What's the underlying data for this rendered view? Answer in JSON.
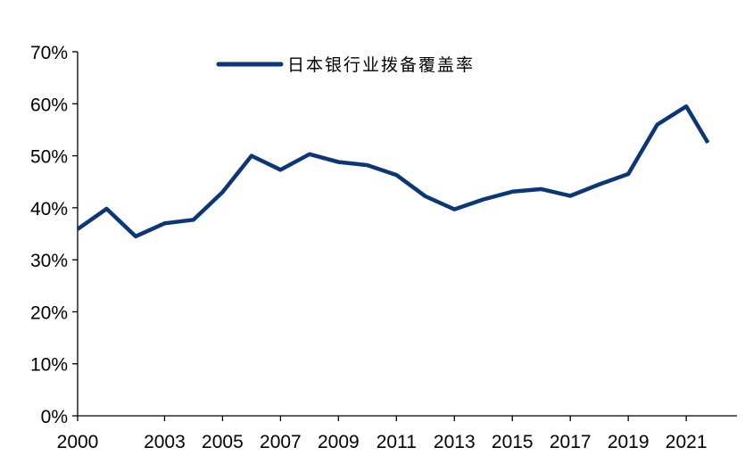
{
  "chart_data": {
    "type": "line",
    "title": "",
    "xlabel": "",
    "ylabel": "",
    "x_ticks": [
      "2000",
      "2003",
      "2005",
      "2007",
      "2009",
      "2011",
      "2013",
      "2015",
      "2017",
      "2019",
      "2021"
    ],
    "y_ticks": [
      "0%",
      "10%",
      "20%",
      "30%",
      "40%",
      "50%",
      "60%",
      "70%"
    ],
    "xlim": [
      2000,
      2022.75
    ],
    "ylim": [
      0,
      70
    ],
    "grid": false,
    "legend_position": "top",
    "color": "#0b3677",
    "series": [
      {
        "name": "日本银行业拨备覆盖率",
        "points": [
          {
            "x": 2000.0,
            "y": 35.9
          },
          {
            "x": 2001.0,
            "y": 39.8
          },
          {
            "x": 2002.0,
            "y": 34.5
          },
          {
            "x": 2003.0,
            "y": 37.0
          },
          {
            "x": 2004.0,
            "y": 37.7
          },
          {
            "x": 2005.0,
            "y": 43.0
          },
          {
            "x": 2006.0,
            "y": 50.0
          },
          {
            "x": 2007.0,
            "y": 47.3
          },
          {
            "x": 2008.0,
            "y": 50.3
          },
          {
            "x": 2009.0,
            "y": 48.8
          },
          {
            "x": 2010.0,
            "y": 48.2
          },
          {
            "x": 2011.0,
            "y": 46.3
          },
          {
            "x": 2012.0,
            "y": 42.2
          },
          {
            "x": 2013.0,
            "y": 39.7
          },
          {
            "x": 2014.0,
            "y": 41.6
          },
          {
            "x": 2015.0,
            "y": 43.1
          },
          {
            "x": 2016.0,
            "y": 43.6
          },
          {
            "x": 2017.0,
            "y": 42.3
          },
          {
            "x": 2018.0,
            "y": 44.5
          },
          {
            "x": 2019.0,
            "y": 46.5
          },
          {
            "x": 2020.0,
            "y": 56.0
          },
          {
            "x": 2021.0,
            "y": 59.5
          },
          {
            "x": 2021.75,
            "y": 52.5
          }
        ]
      }
    ]
  }
}
